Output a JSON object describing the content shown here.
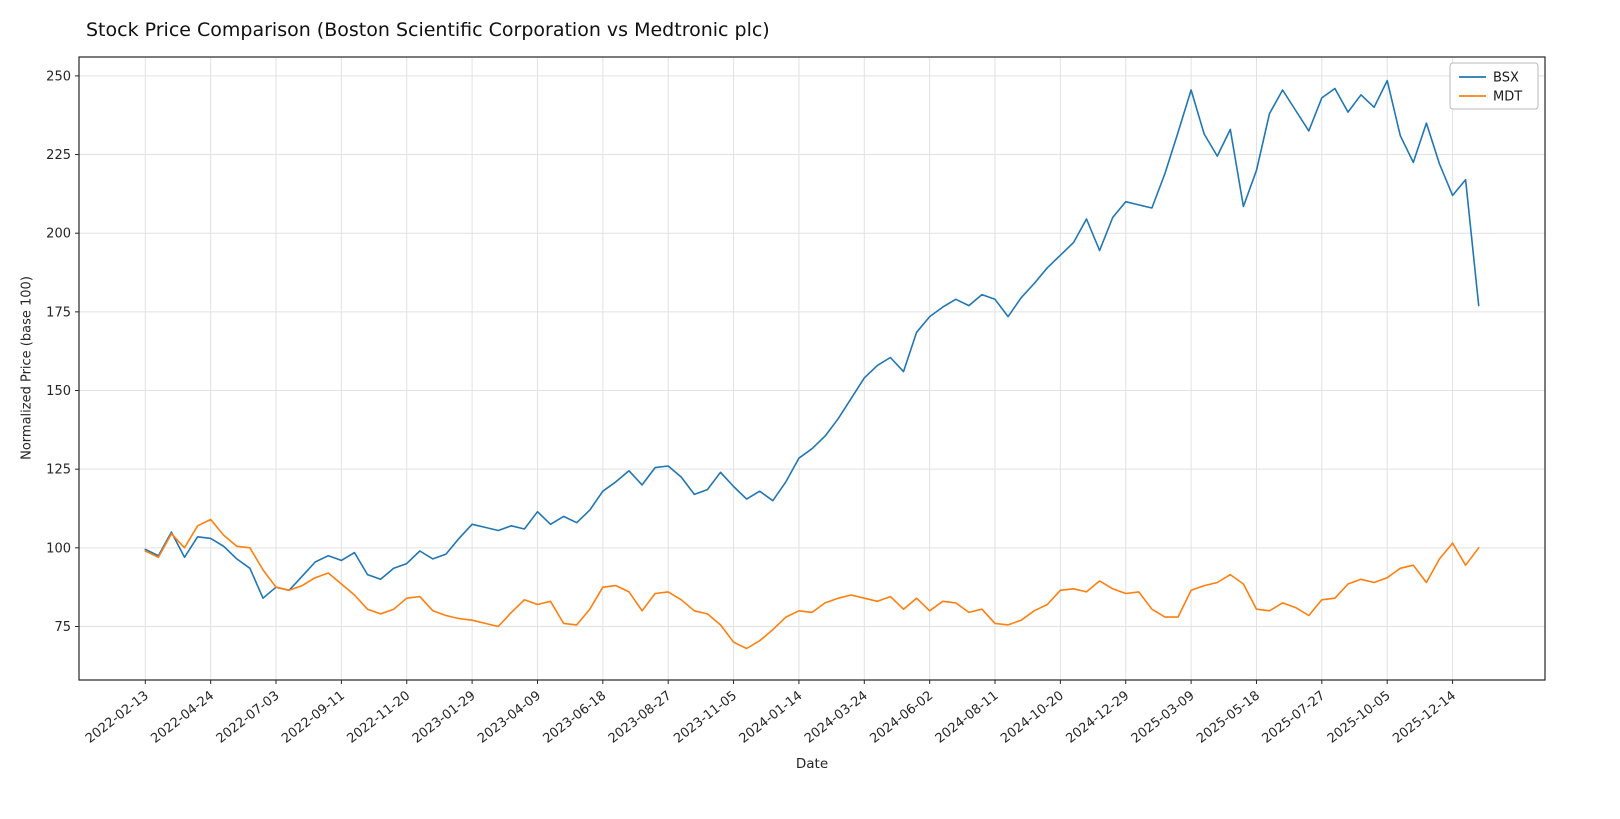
{
  "figure": {
    "background": "#ffffff"
  },
  "chart_data": {
    "type": "line",
    "title": "Stock Price Comparison (Boston Scientific Corporation vs Medtronic plc)",
    "xlabel": "Date",
    "ylabel": "Normalized Price (base 100)",
    "grid": true,
    "legend_position": "upper right",
    "y_ticks": [
      75,
      100,
      125,
      150,
      175,
      200,
      225,
      250
    ],
    "ylim": [
      58,
      256
    ],
    "x_tick_labels": [
      "2022-02-13",
      "2022-04-24",
      "2022-07-03",
      "2022-09-11",
      "2022-11-20",
      "2023-01-29",
      "2023-04-09",
      "2023-06-18",
      "2023-08-27",
      "2023-11-05",
      "2024-01-14",
      "2024-03-24",
      "2024-06-02",
      "2024-08-11",
      "2024-10-20",
      "2024-12-29",
      "2025-03-09",
      "2025-05-18",
      "2025-07-27",
      "2025-10-05",
      "2025-12-14"
    ],
    "x_start": "2022-02-13",
    "x_step_days": 14,
    "xlim_days": [
      -71,
      1499
    ],
    "colors": {
      "grid": "#e2e2e2",
      "spine": "#262626",
      "tick_text": "#262626",
      "legend_border": "#b9b9b9"
    },
    "series": [
      {
        "name": "BSX",
        "color": "#1f77b4",
        "values": [
          99.5,
          97.5,
          105,
          97,
          103.5,
          103,
          100.5,
          96.5,
          93.5,
          84,
          87.5,
          86.5,
          91,
          95.5,
          97.5,
          96,
          98.5,
          91.5,
          90,
          93.5,
          95,
          99,
          96.5,
          98,
          103,
          107.5,
          106.5,
          105.5,
          107,
          106,
          111.5,
          107.5,
          110,
          108,
          112,
          118,
          121,
          124.5,
          120,
          125.5,
          126,
          122.5,
          117,
          118.5,
          124,
          119.5,
          115.5,
          118,
          115,
          121,
          128.5,
          131.5,
          135.5,
          141,
          147.5,
          154,
          158,
          160.5,
          156,
          168.5,
          173.5,
          176.5,
          179,
          177,
          180.5,
          179,
          173.5,
          179.5,
          184,
          189,
          193,
          197,
          204.5,
          194.5,
          205,
          210,
          209,
          208,
          219,
          232,
          245.5,
          231.5,
          224.5,
          233,
          208.5,
          220,
          238,
          245.5,
          239,
          232.5,
          243,
          246,
          238.5,
          244,
          240,
          248.5,
          231,
          222.5,
          235,
          222,
          212,
          217,
          177
        ]
      },
      {
        "name": "MDT",
        "color": "#ff7f0e",
        "values": [
          99,
          97,
          104.5,
          100,
          107,
          109,
          104,
          100.5,
          100,
          93,
          87.5,
          86.5,
          88,
          90.5,
          92,
          88.5,
          85,
          80.5,
          79,
          80.5,
          84,
          84.5,
          80,
          78.5,
          77.5,
          77,
          76,
          75,
          79.5,
          83.5,
          82,
          83,
          76,
          75.5,
          80.5,
          87.5,
          88,
          86,
          80,
          85.5,
          86,
          83.5,
          80,
          79,
          75.5,
          70,
          68,
          70.5,
          74,
          78,
          80,
          79.5,
          82.5,
          84,
          85,
          84,
          83,
          84.5,
          80.5,
          84,
          80,
          83,
          82.5,
          79.5,
          80.5,
          76,
          75.5,
          77,
          80,
          82,
          86.5,
          87,
          86,
          89.5,
          87,
          85.5,
          86,
          80.5,
          78,
          78,
          86.5,
          88,
          89,
          91.5,
          88.5,
          80.5,
          80,
          82.5,
          81,
          78.5,
          83.5,
          84,
          88.5,
          90,
          89,
          90.5,
          93.5,
          94.5,
          89,
          96.5,
          101.5,
          94.5,
          100
        ]
      }
    ]
  }
}
